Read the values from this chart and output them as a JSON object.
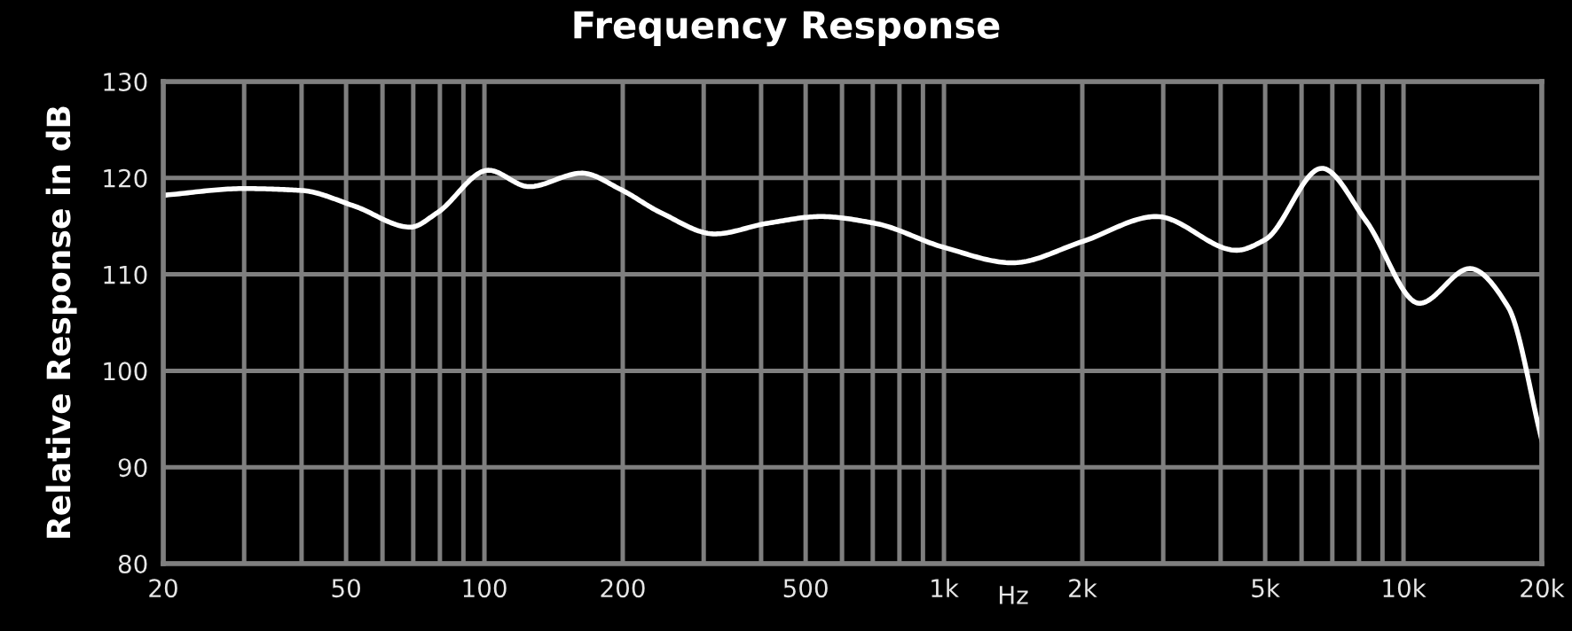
{
  "chart_data": {
    "type": "line",
    "title": "Frequency Response",
    "xlabel": "Hz",
    "ylabel": "Relative Response in dB",
    "log": "x",
    "grid": true,
    "marker": "none",
    "line_style": "solid",
    "xlim": [
      20,
      20000
    ],
    "ylim": [
      80,
      130
    ],
    "xticks": [
      20,
      {
        "value": 30,
        "label": null
      },
      {
        "value": 40,
        "label": null
      },
      50,
      {
        "value": 60,
        "label": null
      },
      {
        "value": 70,
        "label": null
      },
      {
        "value": 80,
        "label": null
      },
      {
        "value": 90,
        "label": null
      },
      100,
      200,
      {
        "value": 300,
        "label": null
      },
      {
        "value": 400,
        "label": null
      },
      500,
      {
        "value": 600,
        "label": null
      },
      {
        "value": 700,
        "label": null
      },
      {
        "value": 800,
        "label": null
      },
      {
        "value": 900,
        "label": null
      },
      {
        "value": 1000,
        "label": "1k"
      },
      {
        "value": 2000,
        "label": "2k"
      },
      {
        "value": 3000,
        "label": null
      },
      {
        "value": 4000,
        "label": null
      },
      {
        "value": 5000,
        "label": "5k"
      },
      {
        "value": 6000,
        "label": null
      },
      {
        "value": 7000,
        "label": null
      },
      {
        "value": 8000,
        "label": null
      },
      {
        "value": 9000,
        "label": null
      },
      {
        "value": 10000,
        "label": "10k"
      },
      {
        "value": 20000,
        "label": "20k"
      }
    ],
    "yticks": [
      80,
      90,
      100,
      110,
      120,
      130
    ],
    "series": [
      {
        "color": "#ffffff",
        "x": [
          20,
          30,
          40,
          52,
          69,
          79,
          102,
          125,
          163,
          198,
          242,
          317,
          413,
          540,
          707,
          1000,
          1410,
          2000,
          2900,
          4330,
          5000,
          6640,
          8300,
          10830,
          13940,
          16900,
          20000
        ],
        "values": [
          118.2,
          118.9,
          118.7,
          117.1,
          114.9,
          116.4,
          120.8,
          119.1,
          120.5,
          118.8,
          116.4,
          114.2,
          115.3,
          116.0,
          115.3,
          112.8,
          111.2,
          113.4,
          116.0,
          112.5,
          113.6,
          121.0,
          115.5,
          107.0,
          110.6,
          106.6,
          92.8
        ]
      }
    ]
  }
}
